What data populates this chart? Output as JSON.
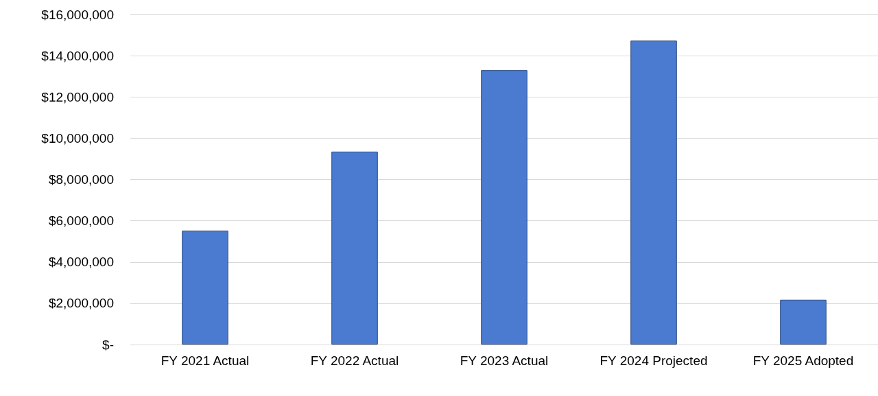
{
  "chart_data": {
    "type": "bar",
    "categories": [
      "FY 2021 Actual",
      "FY 2022 Actual",
      "FY 2023 Actual",
      "FY 2024 Projected",
      "FY 2025 Adopted"
    ],
    "values": [
      5520000,
      9350000,
      13300000,
      14730000,
      2170000
    ],
    "color": "#4a7bd0",
    "ylim": [
      0,
      16000000
    ],
    "yticks": [
      {
        "value": 0,
        "label": "$-"
      },
      {
        "value": 2000000,
        "label": "$2,000,000"
      },
      {
        "value": 4000000,
        "label": "$4,000,000"
      },
      {
        "value": 6000000,
        "label": "$6,000,000"
      },
      {
        "value": 8000000,
        "label": "$8,000,000"
      },
      {
        "value": 10000000,
        "label": "$10,000,000"
      },
      {
        "value": 12000000,
        "label": "$12,000,000"
      },
      {
        "value": 14000000,
        "label": "$14,000,000"
      },
      {
        "value": 16000000,
        "label": "$16,000,000"
      }
    ],
    "grid": "y"
  }
}
